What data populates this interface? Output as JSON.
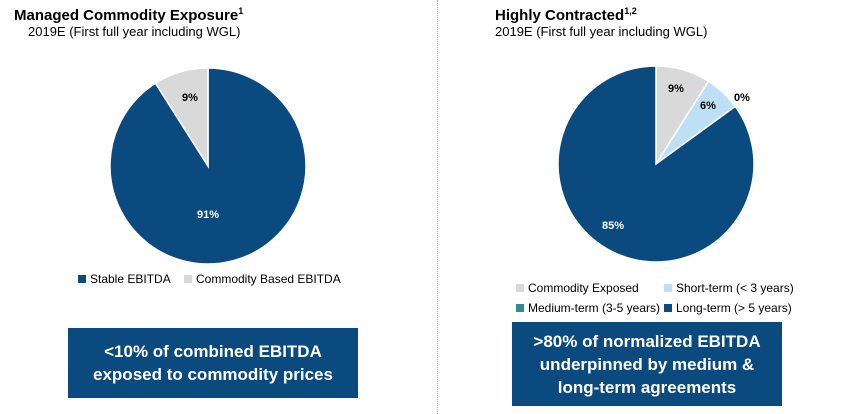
{
  "left": {
    "title": "Managed Commodity Exposure",
    "title_sup": "1",
    "subtitle": "2019E (First full year including WGL)",
    "callout": "<10% of combined EBITDA\nexposed to commodity prices"
  },
  "right": {
    "title": "Highly Contracted",
    "title_sup": "1,2",
    "subtitle": "2019E (First full year including WGL)",
    "callout": ">80% of normalized EBITDA\nunderpinned by medium &\nlong-term agreements"
  },
  "chart_data": [
    {
      "type": "pie",
      "title": "Managed Commodity Exposure",
      "subtitle": "2019E (First full year including WGL)",
      "categories": [
        "Stable EBITDA",
        "Commodity Based EBITDA"
      ],
      "values": [
        91,
        9
      ],
      "labels": [
        "91%",
        "9%"
      ],
      "colors": [
        "#0b4a7e",
        "#d9d9d9"
      ],
      "legend_position": "bottom"
    },
    {
      "type": "pie",
      "title": "Highly Contracted",
      "subtitle": "2019E (First full year including WGL)",
      "categories": [
        "Commodity Exposed",
        "Short-term (< 3 years)",
        "Medium-term (3-5 years)",
        "Long-term (> 5 years)"
      ],
      "values": [
        9,
        6,
        0,
        85
      ],
      "labels": [
        "9%",
        "6%",
        "0%",
        "85%"
      ],
      "colors": [
        "#d9d9d9",
        "#bde0f7",
        "#2e8b95",
        "#0b4a7e"
      ],
      "legend_position": "bottom"
    }
  ]
}
